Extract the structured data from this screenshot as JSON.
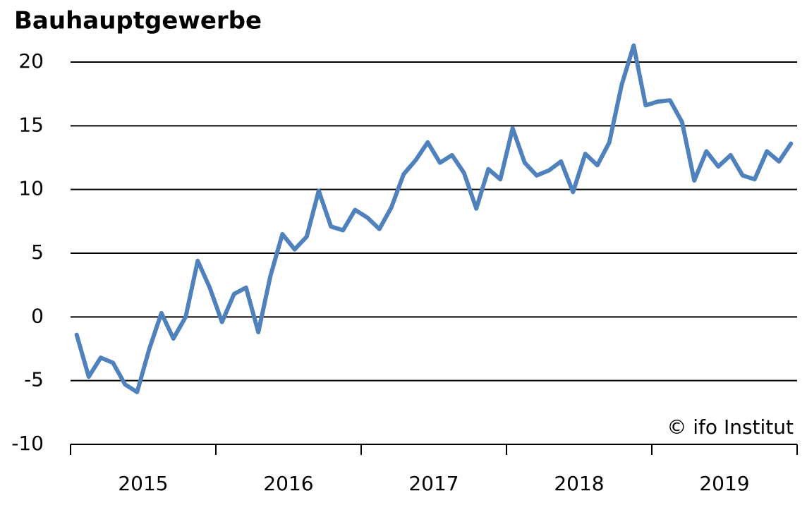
{
  "chart_data": {
    "type": "line",
    "title": "Bauhauptgewerbe",
    "annotation": "© ifo Institut",
    "x": [
      2015.042,
      2015.125,
      2015.208,
      2015.292,
      2015.375,
      2015.458,
      2015.542,
      2015.625,
      2015.708,
      2015.792,
      2015.875,
      2015.958,
      2016.042,
      2016.125,
      2016.208,
      2016.292,
      2016.375,
      2016.458,
      2016.542,
      2016.625,
      2016.708,
      2016.792,
      2016.875,
      2016.958,
      2017.042,
      2017.125,
      2017.208,
      2017.292,
      2017.375,
      2017.458,
      2017.542,
      2017.625,
      2017.708,
      2017.792,
      2017.875,
      2017.958,
      2018.042,
      2018.125,
      2018.208,
      2018.292,
      2018.375,
      2018.458,
      2018.542,
      2018.625,
      2018.708,
      2018.792,
      2018.875,
      2018.958,
      2019.042,
      2019.125,
      2019.208,
      2019.292,
      2019.375,
      2019.458,
      2019.542,
      2019.625,
      2019.708,
      2019.792,
      2019.875,
      2019.958
    ],
    "series": [
      {
        "name": "Bauhauptgewerbe",
        "color": "#4f81bd",
        "values": [
          -1.4,
          -4.7,
          -3.2,
          -3.6,
          -5.3,
          -5.9,
          -2.5,
          0.3,
          -1.7,
          0,
          4.4,
          2.3,
          -0.4,
          1.8,
          2.3,
          -1.2,
          3.2,
          6.5,
          5.3,
          6.3,
          9.9,
          7.1,
          6.8,
          8.4,
          7.8,
          6.9,
          8.6,
          11.2,
          12.3,
          13.7,
          12.1,
          12.7,
          11.3,
          8.5,
          11.6,
          10.8,
          14.8,
          12.1,
          11.1,
          11.5,
          12.2,
          9.8,
          12.8,
          11.9,
          13.7,
          18.2,
          21.3,
          16.6,
          16.9,
          17.0,
          15.3,
          10.7,
          13.0,
          11.8,
          12.7,
          11.1,
          10.8,
          13.0,
          12.2,
          13.6
        ]
      }
    ],
    "xlim": [
      2015,
      2020
    ],
    "xticks": [
      2015,
      2016,
      2017,
      2018,
      2019,
      2020
    ],
    "xlabels": [
      {
        "value": 2015.5,
        "label": "2015"
      },
      {
        "value": 2016.5,
        "label": "2016"
      },
      {
        "value": 2017.5,
        "label": "2017"
      },
      {
        "value": 2018.5,
        "label": "2018"
      },
      {
        "value": 2019.5,
        "label": "2019"
      }
    ],
    "ylim": [
      -10,
      20
    ],
    "yticks": [
      -10,
      -5,
      0,
      5,
      10,
      15,
      20
    ],
    "grid": true
  }
}
